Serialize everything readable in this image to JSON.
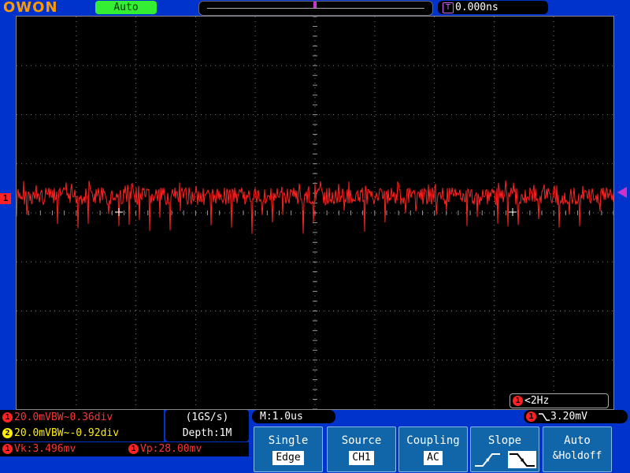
{
  "header": {
    "logo": "OWON",
    "trigger_status": "Auto",
    "trigger_position": "0.000ns",
    "trigger_marker": "T"
  },
  "channels": {
    "ch1": {
      "number": "1",
      "label": "20.0mVBW~0.36div",
      "color": "#ff2222"
    },
    "ch2": {
      "number": "2",
      "label": "20.0mVBW~-0.92div",
      "color": "#ffee00"
    }
  },
  "acquisition": {
    "rate": "(1GS/s)",
    "depth": "Depth:1M"
  },
  "timebase": "M:1.0us",
  "trigger_level": "3.20mV",
  "frequency": "<2Hz",
  "measurements": {
    "vk": "Vk:3.496mv",
    "vp": "Vp:28.00mv"
  },
  "menu": {
    "type": {
      "label": "Single",
      "value": "Edge"
    },
    "source": {
      "label": "Source",
      "value": "CH1"
    },
    "coupling": {
      "label": "Coupling",
      "value": "AC"
    },
    "slope": {
      "label": "Slope"
    },
    "mode": {
      "label": "Auto",
      "value": "&Holdoff"
    }
  },
  "colors": {
    "background": "#0033cc",
    "screen": "#000000",
    "trace": "#ff2222",
    "trigger": "#cc33cc"
  }
}
